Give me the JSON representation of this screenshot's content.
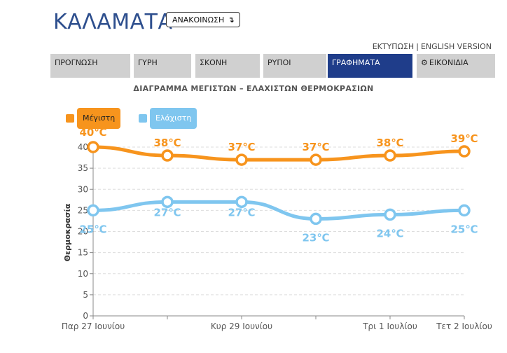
{
  "header": {
    "city": "ΚΑΛΑΜΑΤΑ",
    "announce_label": "ΑΝΑΚΟΙΝΩΣΗ",
    "announce_arrow": "↴",
    "print_link": "ΕΚΤΥΠΩΣΗ",
    "separator": "|",
    "english_link": "ENGLISH VERSION"
  },
  "tabs": [
    {
      "label": "ΠΡΟΓΝΩΣΗ"
    },
    {
      "label": "ΓΥΡΗ"
    },
    {
      "label": "ΣΚΟΝΗ"
    },
    {
      "label": "ΡΥΠΟΙ"
    },
    {
      "label": "ΓΡΑΦΗΜΑΤΑ"
    },
    {
      "label": "ΕΙΚΟΝΙΔΙΑ",
      "icon": "gear-icon"
    }
  ],
  "active_tab": 4,
  "colors": {
    "max": "#f7941d",
    "min": "#7fc6ef",
    "active_tab": "#1f3d8a",
    "title": "#2e4f8e"
  },
  "chart_data": {
    "type": "line",
    "title": "ΔΙΑΓΡΑΜΜΑ ΜΕΓΙΣΤΩΝ – ΕΛΑΧΙΣΤΩΝ ΘΕΡΜΟΚΡΑΣΙΩΝ",
    "ylabel": "Θερμοκρασία",
    "xlabel": "",
    "ylim": [
      0,
      40
    ],
    "yticks": [
      0,
      5,
      10,
      15,
      20,
      25,
      30,
      35,
      40
    ],
    "x_tick_labels": [
      {
        "index": 0,
        "label": "Παρ 27 Ιουνίου"
      },
      {
        "index": 2,
        "label": "Κυρ 29 Ιουνίου"
      },
      {
        "index": 4,
        "label": "Τρι 1 Ιουλίου"
      },
      {
        "index": 5,
        "label": "Τετ 2 Ιουλίου"
      }
    ],
    "legend_position": "top-left",
    "grid": true,
    "series": [
      {
        "name": "Μέγιστη",
        "values": [
          40,
          38,
          37,
          37,
          38,
          39
        ],
        "labels": [
          "40℃",
          "38℃",
          "37℃",
          "37℃",
          "38℃",
          "39℃"
        ]
      },
      {
        "name": "Ελάχιστη",
        "values": [
          25,
          27,
          27,
          23,
          24,
          25
        ],
        "labels": [
          "25℃",
          "27℃",
          "27℃",
          "23℃",
          "24℃",
          "25℃"
        ]
      }
    ]
  }
}
